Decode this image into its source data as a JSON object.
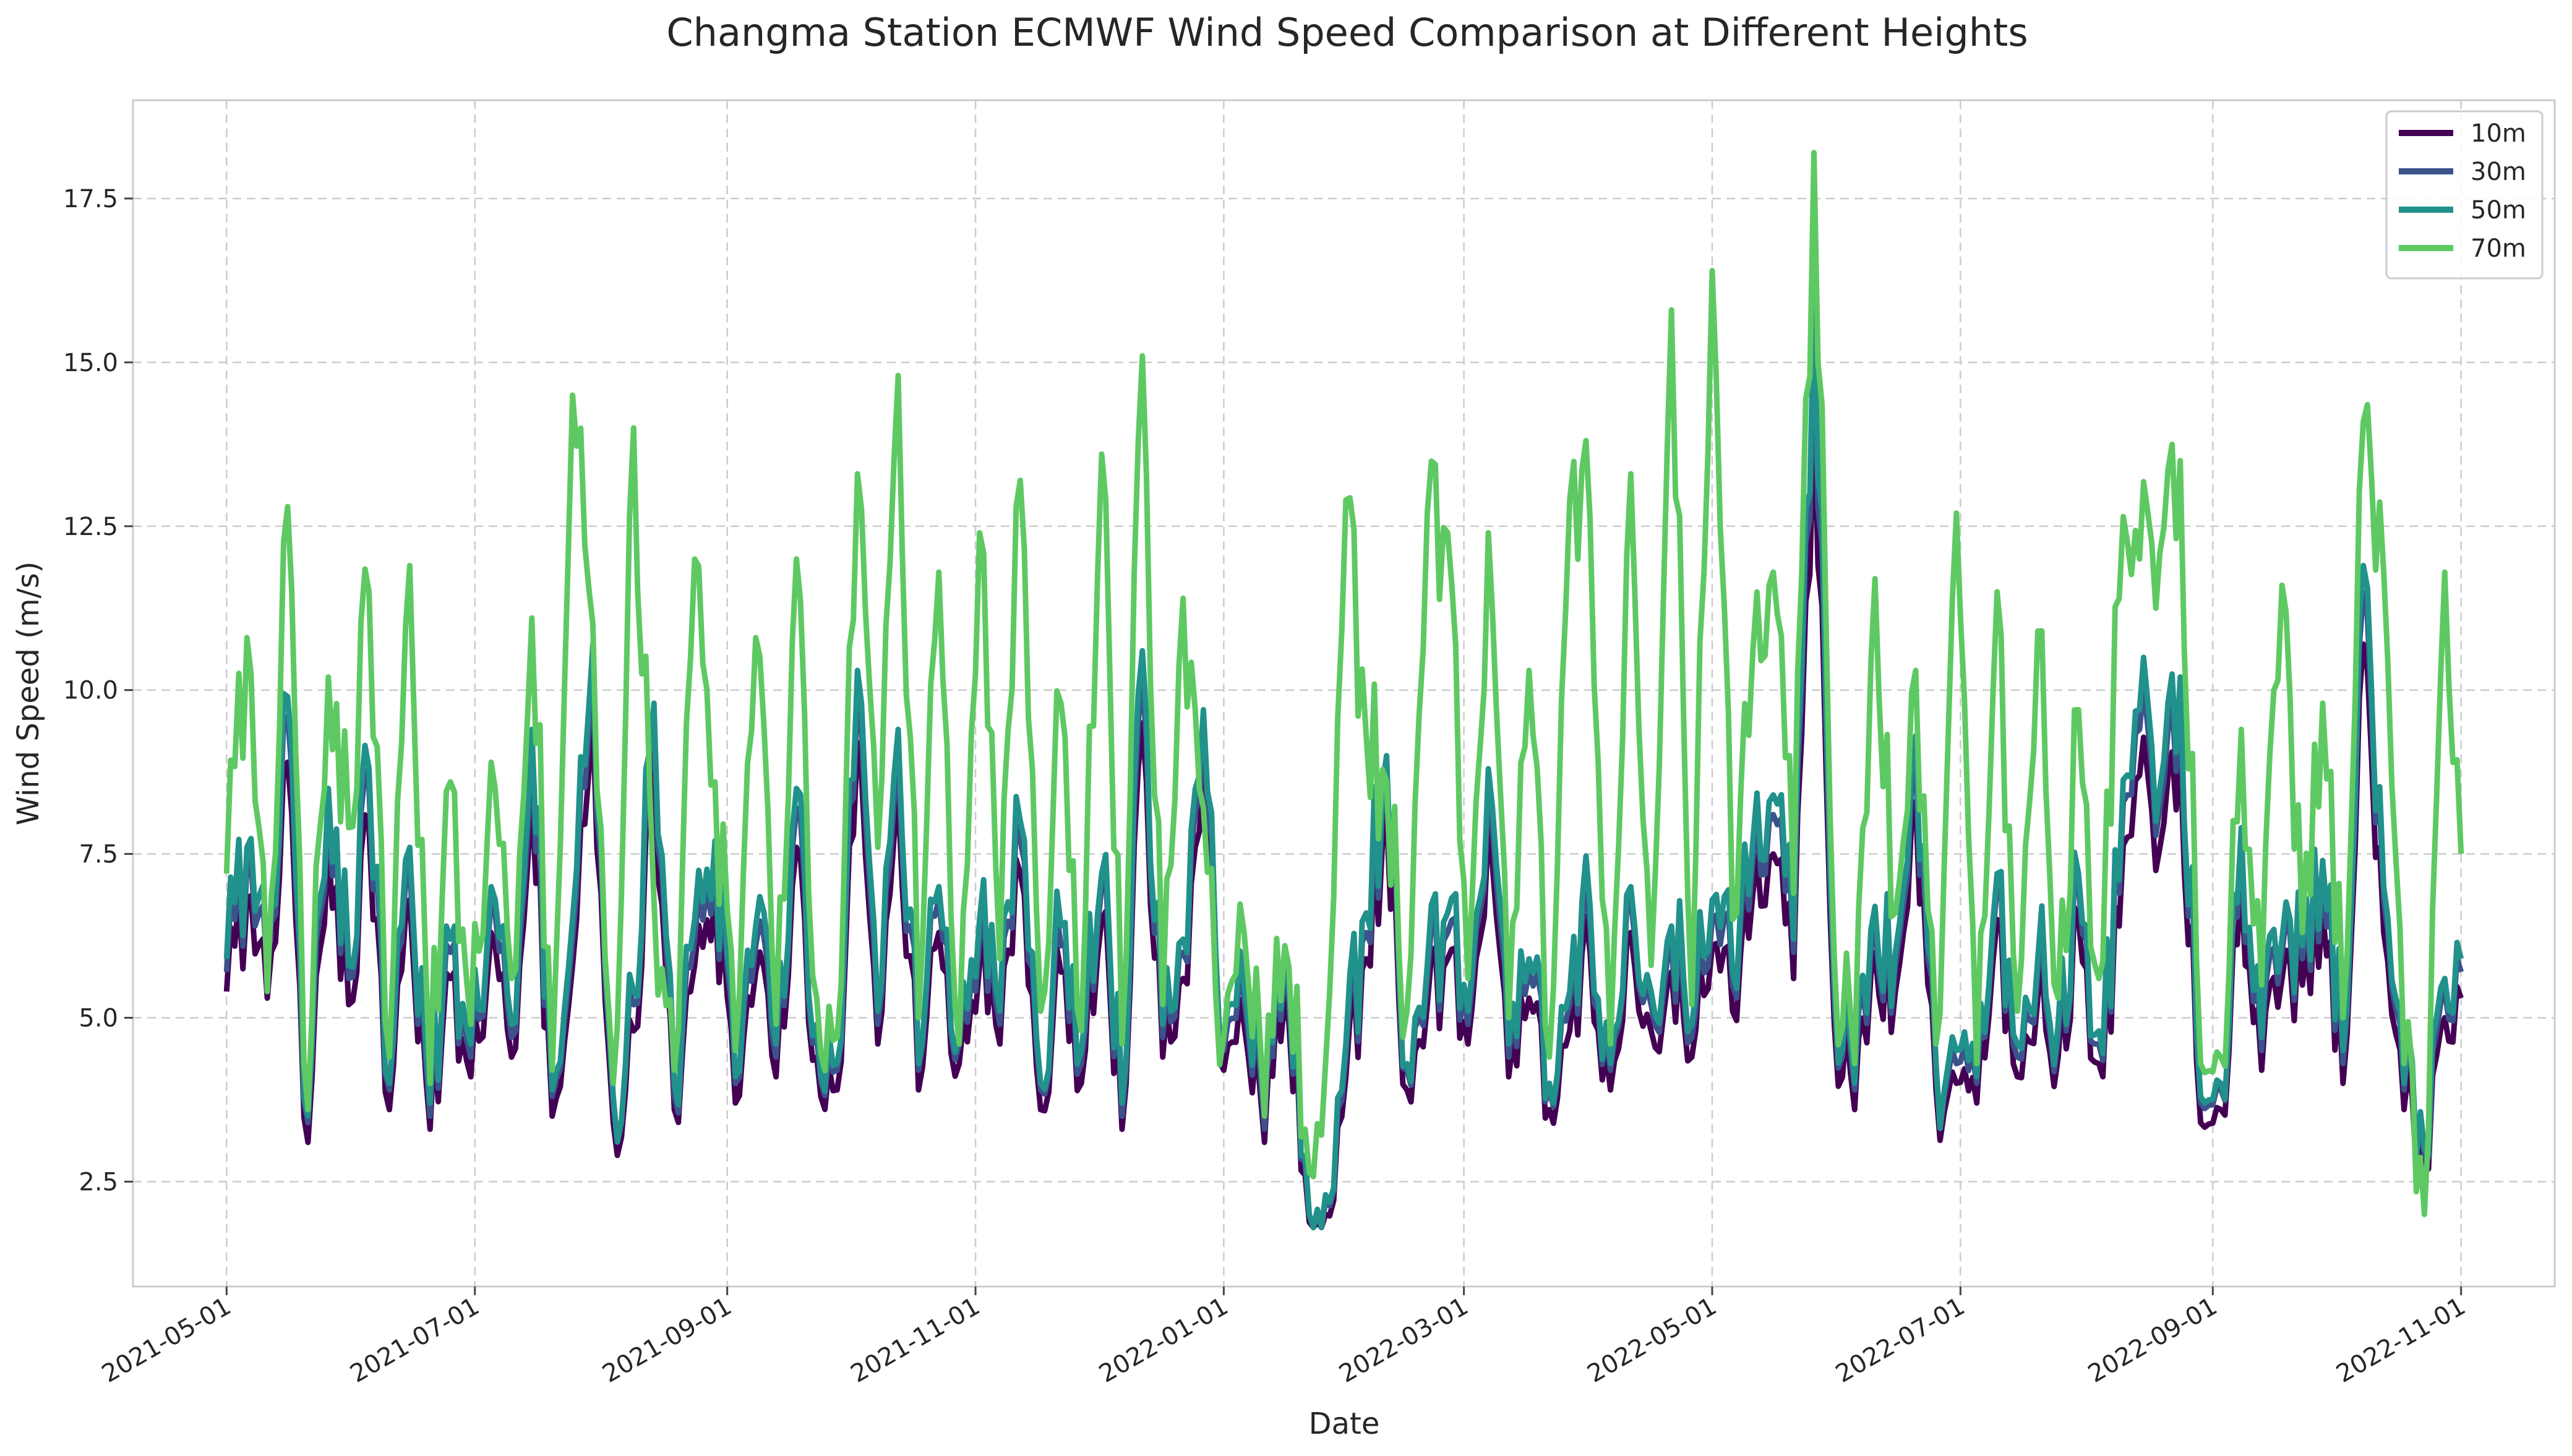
{
  "chart_data": {
    "type": "line",
    "title": "Changma Station ECMWF Wind Speed Comparison at Different Heights",
    "xlabel": "Date",
    "ylabel": "Wind Speed (m/s)",
    "x_range": [
      "2021-04-08",
      "2022-11-24"
    ],
    "ylim": [
      0.9,
      19.0
    ],
    "y_ticks": [
      2.5,
      5.0,
      7.5,
      10.0,
      12.5,
      15.0,
      17.5
    ],
    "y_tick_labels": [
      "2.5",
      "5.0",
      "7.5",
      "10.0",
      "12.5",
      "15.0",
      "17.5"
    ],
    "x_ticks": [
      "2021-05-01",
      "2021-07-01",
      "2021-09-01",
      "2021-11-01",
      "2022-01-01",
      "2022-03-01",
      "2022-05-01",
      "2022-07-01",
      "2022-09-01",
      "2022-11-01"
    ],
    "grid": true,
    "legend_position": "top-right",
    "x_dates": [
      "2021-05-01",
      "2021-05-06",
      "2021-05-11",
      "2021-05-16",
      "2021-05-21",
      "2021-05-26",
      "2021-05-31",
      "2021-06-05",
      "2021-06-10",
      "2021-06-15",
      "2021-06-20",
      "2021-06-25",
      "2021-06-30",
      "2021-07-05",
      "2021-07-10",
      "2021-07-15",
      "2021-07-20",
      "2021-07-25",
      "2021-07-30",
      "2021-08-04",
      "2021-08-09",
      "2021-08-14",
      "2021-08-19",
      "2021-08-24",
      "2021-08-29",
      "2021-09-03",
      "2021-09-08",
      "2021-09-13",
      "2021-09-18",
      "2021-09-23",
      "2021-09-28",
      "2021-10-03",
      "2021-10-08",
      "2021-10-13",
      "2021-10-18",
      "2021-10-23",
      "2021-10-28",
      "2021-11-02",
      "2021-11-07",
      "2021-11-12",
      "2021-11-17",
      "2021-11-22",
      "2021-11-27",
      "2021-12-02",
      "2021-12-07",
      "2021-12-12",
      "2021-12-17",
      "2021-12-22",
      "2021-12-27",
      "2022-01-01",
      "2022-01-06",
      "2022-01-11",
      "2022-01-16",
      "2022-01-21",
      "2022-01-26",
      "2022-01-31",
      "2022-02-05",
      "2022-02-10",
      "2022-02-15",
      "2022-02-20",
      "2022-02-25",
      "2022-03-02",
      "2022-03-07",
      "2022-03-12",
      "2022-03-17",
      "2022-03-22",
      "2022-03-27",
      "2022-04-01",
      "2022-04-06",
      "2022-04-11",
      "2022-04-16",
      "2022-04-21",
      "2022-04-26",
      "2022-05-01",
      "2022-05-06",
      "2022-05-11",
      "2022-05-16",
      "2022-05-21",
      "2022-05-26",
      "2022-05-31",
      "2022-06-05",
      "2022-06-10",
      "2022-06-15",
      "2022-06-20",
      "2022-06-25",
      "2022-06-30",
      "2022-07-05",
      "2022-07-10",
      "2022-07-15",
      "2022-07-20",
      "2022-07-25",
      "2022-07-30",
      "2022-08-04",
      "2022-08-09",
      "2022-08-14",
      "2022-08-19",
      "2022-08-24",
      "2022-08-29",
      "2022-09-03",
      "2022-09-08",
      "2022-09-13",
      "2022-09-18",
      "2022-09-23",
      "2022-09-28",
      "2022-10-03",
      "2022-10-08",
      "2022-10-13",
      "2022-10-18",
      "2022-10-23",
      "2022-10-28",
      "2022-11-01"
    ],
    "series": [
      {
        "name": "10m",
        "color": "#440154",
        "values": [
          5.4,
          6.8,
          5.3,
          8.9,
          3.1,
          7.6,
          5.2,
          7.9,
          3.6,
          6.8,
          3.3,
          5.6,
          4.1,
          6.3,
          4.4,
          8.4,
          3.5,
          5.8,
          9.6,
          3.4,
          4.8,
          8.8,
          3.6,
          5.8,
          6.9,
          3.7,
          5.7,
          4.1,
          7.6,
          4.4,
          3.9,
          9.2,
          4.6,
          8.4,
          3.9,
          6.3,
          4.3,
          5.8,
          4.6,
          7.2,
          3.6,
          5.7,
          4.0,
          6.5,
          3.3,
          9.5,
          4.4,
          5.6,
          8.7,
          4.2,
          4.9,
          3.1,
          5.3,
          2.6,
          2.0,
          4.1,
          5.9,
          8.1,
          3.9,
          5.2,
          5.9,
          4.6,
          7.9,
          4.1,
          5.3,
          3.6,
          4.8,
          6.0,
          3.9,
          6.3,
          4.8,
          5.7,
          4.4,
          6.1,
          5.1,
          6.9,
          7.5,
          5.6,
          14.3,
          4.9,
          3.6,
          6.0,
          5.4,
          8.3,
          3.9,
          4.0,
          3.7,
          6.5,
          4.1,
          5.3,
          4.4,
          6.5,
          4.3,
          6.4,
          8.7,
          7.6,
          9.1,
          3.4,
          3.6,
          7.1,
          4.2,
          5.6,
          5.5,
          6.6,
          4.0,
          10.7,
          6.3,
          3.6,
          2.7,
          5.0,
          5.3
        ]
      },
      {
        "name": "30m",
        "color": "#3b528b",
        "values": [
          5.7,
          7.3,
          5.7,
          9.6,
          3.4,
          8.2,
          5.6,
          8.5,
          3.9,
          7.3,
          3.5,
          6.0,
          4.4,
          6.8,
          4.7,
          9.0,
          3.8,
          6.2,
          10.3,
          3.7,
          5.2,
          9.5,
          3.8,
          6.2,
          7.4,
          4.0,
          6.1,
          4.4,
          8.2,
          4.7,
          4.2,
          9.9,
          4.9,
          9.0,
          4.2,
          6.8,
          4.6,
          6.2,
          4.9,
          7.7,
          3.9,
          6.1,
          4.3,
          7.0,
          3.5,
          10.2,
          4.7,
          6.0,
          9.3,
          4.5,
          5.3,
          3.3,
          5.7,
          2.8,
          2.2,
          4.4,
          6.3,
          8.7,
          4.2,
          5.6,
          6.3,
          4.9,
          8.5,
          4.4,
          5.7,
          3.9,
          5.2,
          6.4,
          4.2,
          6.8,
          5.2,
          6.1,
          4.7,
          6.5,
          5.5,
          7.4,
          8.1,
          6.0,
          15.4,
          5.3,
          3.9,
          6.4,
          5.8,
          8.9,
          4.2,
          4.3,
          4.0,
          7.0,
          4.4,
          5.7,
          4.7,
          7.0,
          4.6,
          6.9,
          9.4,
          8.2,
          9.8,
          3.7,
          3.9,
          7.6,
          4.5,
          6.0,
          5.9,
          7.1,
          4.3,
          11.5,
          6.8,
          3.9,
          2.9,
          5.4,
          5.7
        ]
      },
      {
        "name": "50m",
        "color": "#21918c",
        "values": [
          5.9,
          7.6,
          5.9,
          9.9,
          3.5,
          8.5,
          5.8,
          8.8,
          4.0,
          7.6,
          3.7,
          6.2,
          4.6,
          7.0,
          4.9,
          9.4,
          3.9,
          6.5,
          10.7,
          3.8,
          5.4,
          9.8,
          4.0,
          6.5,
          7.7,
          4.1,
          6.4,
          4.6,
          8.5,
          4.9,
          4.3,
          10.3,
          5.1,
          9.4,
          4.3,
          7.0,
          4.8,
          6.5,
          5.1,
          8.0,
          4.0,
          6.4,
          4.5,
          7.2,
          3.7,
          10.6,
          4.9,
          6.2,
          9.7,
          4.7,
          5.5,
          3.5,
          5.9,
          2.9,
          2.3,
          4.6,
          6.6,
          9.0,
          4.3,
          5.8,
          6.6,
          5.1,
          8.8,
          4.6,
          5.9,
          4.0,
          5.4,
          6.7,
          4.3,
          7.0,
          5.4,
          6.4,
          4.9,
          6.8,
          5.7,
          7.7,
          8.4,
          6.2,
          16.0,
          5.5,
          4.0,
          6.7,
          6.0,
          9.3,
          4.3,
          4.5,
          4.1,
          7.2,
          4.6,
          5.9,
          4.9,
          7.2,
          4.8,
          7.1,
          9.7,
          8.5,
          10.2,
          3.8,
          4.0,
          7.9,
          4.7,
          6.2,
          6.1,
          7.4,
          4.5,
          11.9,
          7.0,
          4.0,
          3.0,
          5.6,
          5.9
        ]
      },
      {
        "name": "70m",
        "color": "#5ec962",
        "values": [
          7.2,
          10.8,
          5.4,
          12.8,
          3.6,
          10.2,
          7.9,
          11.5,
          4.4,
          11.9,
          4.0,
          8.6,
          4.9,
          8.9,
          5.6,
          11.1,
          4.2,
          14.5,
          11.0,
          4.0,
          14.0,
          6.8,
          4.2,
          12.0,
          8.6,
          4.5,
          10.8,
          4.9,
          12.0,
          5.3,
          4.7,
          13.3,
          7.6,
          14.8,
          5.0,
          11.8,
          4.6,
          12.4,
          5.9,
          13.2,
          5.1,
          9.8,
          4.8,
          13.6,
          4.6,
          15.1,
          5.2,
          11.4,
          8.2,
          4.7,
          6.3,
          3.5,
          6.1,
          3.3,
          4.3,
          12.9,
          9.3,
          8.6,
          5.1,
          12.7,
          12.4,
          5.6,
          12.4,
          5.0,
          10.3,
          4.4,
          12.9,
          12.6,
          4.6,
          13.3,
          5.8,
          15.8,
          5.2,
          16.4,
          6.5,
          10.6,
          11.8,
          6.9,
          18.2,
          5.9,
          4.3,
          11.7,
          6.6,
          10.3,
          4.6,
          12.7,
          4.3,
          11.5,
          5.1,
          10.9,
          5.3,
          9.7,
          5.6,
          11.4,
          12.0,
          12.1,
          13.5,
          4.3,
          4.4,
          9.4,
          5.5,
          11.6,
          6.3,
          9.8,
          5.0,
          14.1,
          11.8,
          4.3,
          2.0,
          11.8,
          7.5
        ]
      }
    ]
  }
}
